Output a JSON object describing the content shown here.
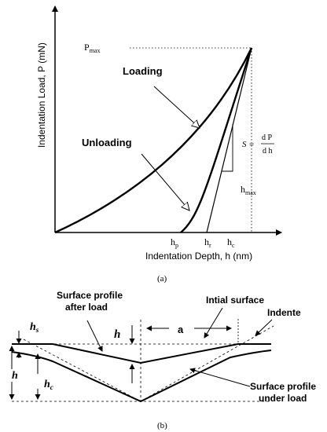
{
  "figure_a": {
    "y_axis_label": "Indentation Load, P (mN)",
    "x_axis_label": "Indentation Depth, h (nm)",
    "p_max_label": "P",
    "p_max_sub": "max",
    "h_max_label": "h",
    "h_max_sub": "max",
    "loading_label": "Loading",
    "unloading_label": "Unloading",
    "stiffness_s": "S =",
    "stiffness_num": "d P",
    "stiffness_den": "d h",
    "hp_label": "h",
    "hp_sub": "p",
    "hr_label": "h",
    "hr_sub": "r",
    "hc_label": "h",
    "hc_sub": "c",
    "caption": "(a)"
  },
  "figure_b": {
    "hs_label": "h",
    "hs_sub": "s",
    "h_left_label": "h",
    "hc_label": "h",
    "hc_sub": "c",
    "h_center_label": "h",
    "a_label": "a",
    "surface_after_line1": "Surface profile",
    "surface_after_line2": "after load",
    "initial_surface": "Intial surface",
    "indente": "Indente",
    "surface_under_line1": "Surface profile",
    "surface_under_line2": "under load",
    "caption": "(b)"
  }
}
